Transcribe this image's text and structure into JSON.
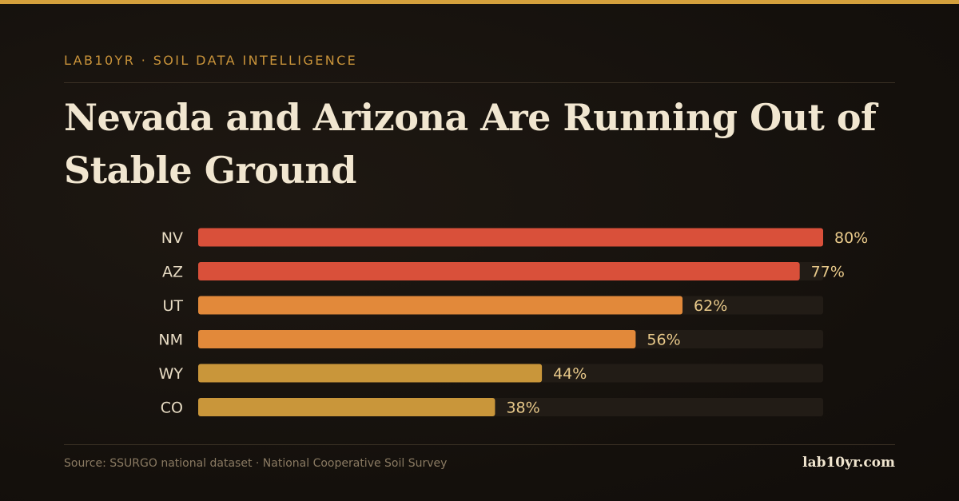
{
  "eyebrow": "LAB10YR · SOIL DATA INTELLIGENCE",
  "title": "Nevada and Arizona Are Running Out of Stable Ground",
  "footer": {
    "source": "Source: SSURGO national dataset · National Cooperative Soil Survey",
    "brand": "lab10yr.com"
  },
  "colors": {
    "accent": "#d4a03c",
    "track": "#221c16",
    "label": "#e8dcc4",
    "value": "#e8c98a"
  },
  "chart_data": {
    "type": "bar",
    "orientation": "horizontal",
    "categories": [
      "NV",
      "AZ",
      "UT",
      "NM",
      "WY",
      "CO"
    ],
    "values": [
      80,
      77,
      62,
      56,
      44,
      38
    ],
    "value_labels": [
      "80%",
      "77%",
      "62%",
      "56%",
      "44%",
      "38%"
    ],
    "bar_colors": [
      "#d9503a",
      "#d9503a",
      "#e2893a",
      "#e2893a",
      "#c9963a",
      "#c9963a"
    ],
    "xlim": [
      0,
      80
    ],
    "grid": false,
    "legend": "none"
  }
}
